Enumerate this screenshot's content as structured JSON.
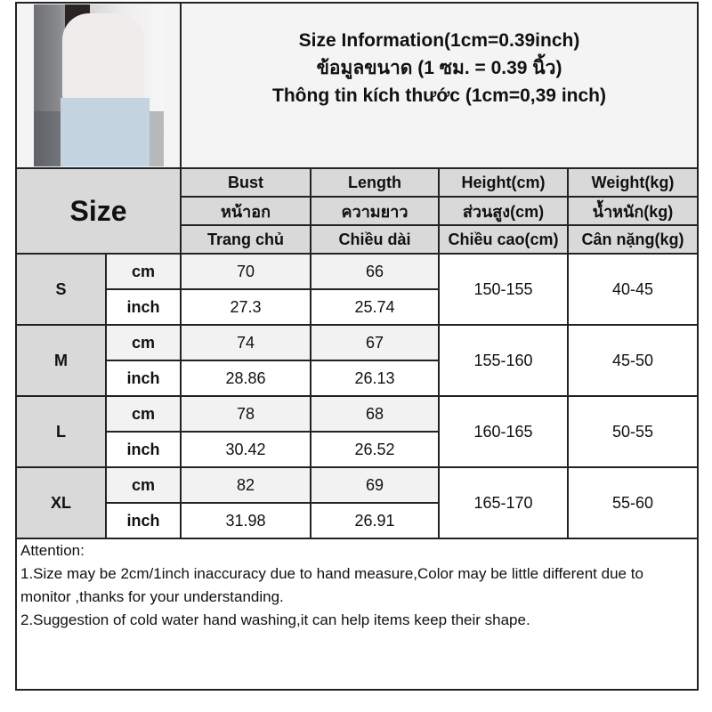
{
  "header": {
    "title_en": "Size Information(1cm=0.39inch)",
    "title_th": "ข้อมูลขนาด (1 ซม. = 0.39 นิ้ว)",
    "title_vi": "Thông tin kích thước (1cm=0,39 inch)"
  },
  "size_label": "Size",
  "columns": [
    {
      "en": "Bust",
      "th": "หน้าอก",
      "vi": "Trang chủ"
    },
    {
      "en": "Length",
      "th": "ความยาว",
      "vi": "Chiều dài"
    },
    {
      "en": "Height(cm)",
      "th": "ส่วนสูง(cm)",
      "vi": "Chiều cao(cm)"
    },
    {
      "en": "Weight(kg)",
      "th": "น้ำหนัก(kg)",
      "vi": "Cân nặng(kg)"
    }
  ],
  "rows": [
    {
      "size": "S",
      "cm_label": "cm",
      "inch_label": "inch",
      "bust_cm": "70",
      "length_cm": "66",
      "bust_inch": "27.3",
      "length_inch": "25.74",
      "height": "150-155",
      "weight": "40-45"
    },
    {
      "size": "M",
      "cm_label": "cm",
      "inch_label": "inch",
      "bust_cm": "74",
      "length_cm": "67",
      "bust_inch": "28.86",
      "length_inch": "26.13",
      "height": "155-160",
      "weight": "45-50"
    },
    {
      "size": "L",
      "cm_label": "cm",
      "inch_label": "inch",
      "bust_cm": "78",
      "length_cm": "68",
      "bust_inch": "30.42",
      "length_inch": "26.52",
      "height": "160-165",
      "weight": "50-55"
    },
    {
      "size": "XL",
      "cm_label": "cm",
      "inch_label": "inch",
      "bust_cm": "82",
      "length_cm": "69",
      "bust_inch": "31.98",
      "length_inch": "26.91",
      "height": "165-170",
      "weight": "55-60"
    }
  ],
  "attention": {
    "title": "Attention:",
    "note1": "1.Size may be 2cm/1inch inaccuracy due to hand measure,Color may be little different due to monitor ,thanks for your understanding.",
    "note2": "2.Suggestion of cold water hand washing,it can help items keep their shape."
  },
  "colors": {
    "header_bg": "#d9d9d9",
    "info_bg": "#f4f4f4",
    "cm_row_bg": "#f2f2f2",
    "border": "#222222"
  }
}
